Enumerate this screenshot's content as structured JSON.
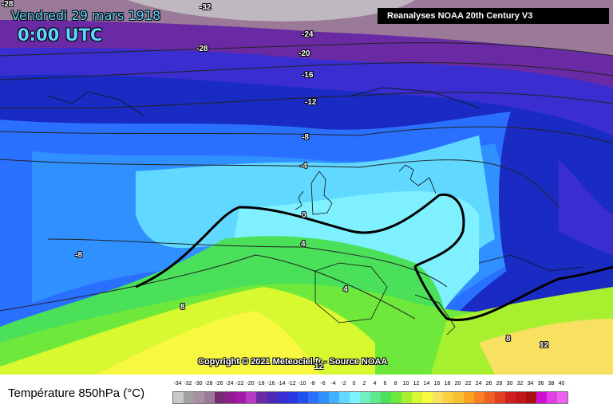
{
  "header": {
    "date": "Vendredi 29 mars 1918",
    "time": "0:00 UTC",
    "source_badge": "Reanalyses NOAA 20th Century V3",
    "copyright": "Copyright © 2021 Meteociel.fr - Source NOAA"
  },
  "isotherm_labels": [
    {
      "text": "-32",
      "pos": "top-center"
    },
    {
      "text": "-28",
      "pos": "top-left"
    },
    {
      "text": "-28",
      "pos": "north"
    },
    {
      "text": "-24",
      "pos": "north-east"
    },
    {
      "text": "-20",
      "pos": "north-east"
    },
    {
      "text": "-16",
      "pos": "north-east"
    },
    {
      "text": "-12",
      "pos": "north-east"
    },
    {
      "text": "-8",
      "pos": "central"
    },
    {
      "text": "-4",
      "pos": "central"
    },
    {
      "text": "0",
      "pos": "central"
    },
    {
      "text": "4",
      "pos": "central"
    },
    {
      "text": "-8",
      "pos": "west"
    },
    {
      "text": "8",
      "pos": "south-west"
    },
    {
      "text": "4",
      "pos": "iberia"
    },
    {
      "text": "8",
      "pos": "south-east"
    },
    {
      "text": "12",
      "pos": "south-east"
    },
    {
      "text": "12",
      "pos": "bottom"
    }
  ],
  "legend": {
    "title": "Température 850hPa (°C)",
    "ticks": [
      "-34",
      "-32",
      "-30",
      "-28",
      "-26",
      "-24",
      "-22",
      "-20",
      "-18",
      "-16",
      "-14",
      "-12",
      "-10",
      "-8",
      "-6",
      "-4",
      "-2",
      "0",
      "2",
      "4",
      "6",
      "8",
      "10",
      "12",
      "14",
      "16",
      "18",
      "20",
      "22",
      "24",
      "26",
      "28",
      "30",
      "32",
      "34",
      "36",
      "38",
      "40"
    ],
    "colors": [
      "#c8c8c8",
      "#a0a0a0",
      "#a890a0",
      "#9a7a98",
      "#7a2a6e",
      "#8e1c8e",
      "#a21aa8",
      "#b83cc2",
      "#6a2aa4",
      "#4e2ab2",
      "#3a2ed0",
      "#2a3ae0",
      "#2050f0",
      "#2a70ff",
      "#3090ff",
      "#40b0ff",
      "#60d8ff",
      "#7ff0ff",
      "#70f0c0",
      "#60e890",
      "#4ae05a",
      "#6ee83a",
      "#a6f030",
      "#d8f830",
      "#f8f840",
      "#f8e060",
      "#f8d040",
      "#f8c030",
      "#f8a020",
      "#f88020",
      "#f06020",
      "#e04020",
      "#d02020",
      "#c01818",
      "#a81010",
      "#d010d0",
      "#e040e0",
      "#f060f0"
    ]
  }
}
